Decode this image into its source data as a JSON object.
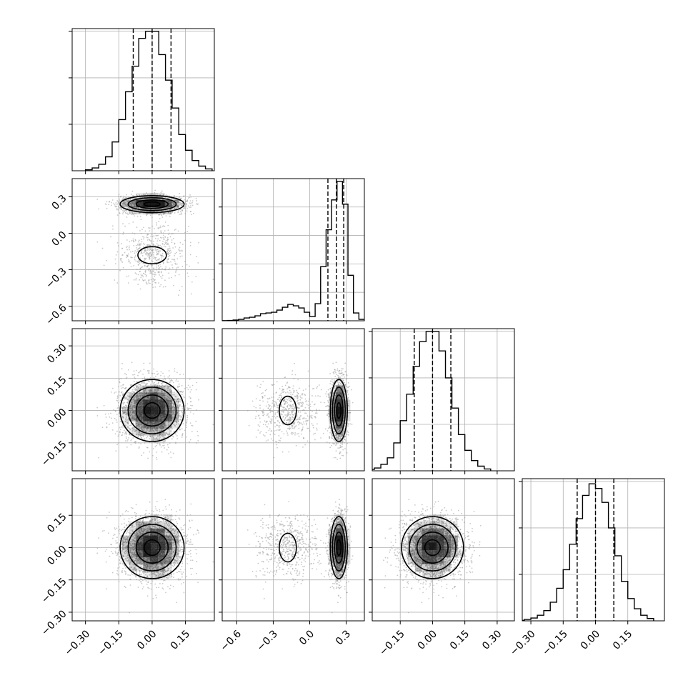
{
  "chart_data": {
    "type": "corner",
    "parameters": 4,
    "grid": true,
    "quantile_lines": "dashed",
    "histograms": [
      {
        "param": 0,
        "bin_edges": [
          -0.3,
          -0.27,
          -0.24,
          -0.21,
          -0.18,
          -0.15,
          -0.12,
          -0.09,
          -0.06,
          -0.03,
          0.0,
          0.03,
          0.06,
          0.09,
          0.12,
          0.15,
          0.18,
          0.21,
          0.24,
          0.27
        ],
        "counts": [
          2,
          6,
          14,
          30,
          62,
          110,
          170,
          225,
          285,
          300,
          300,
          250,
          195,
          135,
          78,
          44,
          22,
          10,
          4
        ],
        "quantiles": [
          -0.085,
          0.0,
          0.085
        ],
        "ylim": [
          0,
          300
        ],
        "ticks": [
          100,
          200,
          300
        ]
      },
      {
        "param": 1,
        "bin_edges": [
          -0.72,
          -0.675,
          -0.63,
          -0.585,
          -0.54,
          -0.495,
          -0.45,
          -0.405,
          -0.36,
          -0.315,
          -0.27,
          -0.225,
          -0.18,
          -0.135,
          -0.09,
          -0.045,
          0.0,
          0.045,
          0.09,
          0.135,
          0.18,
          0.225,
          0.27,
          0.315,
          0.36,
          0.405,
          0.45
        ],
        "counts": [
          1,
          2,
          5,
          10,
          20,
          25,
          35,
          50,
          55,
          60,
          75,
          95,
          115,
          105,
          90,
          60,
          30,
          120,
          380,
          640,
          850,
          980,
          820,
          320,
          55,
          10
        ],
        "quantiles": [
          0.15,
          0.22,
          0.28
        ],
        "ylim": [
          0,
          980
        ],
        "ticks": [
          200,
          400,
          600,
          800
        ]
      },
      {
        "param": 2,
        "bin_edges": [
          -0.3,
          -0.27,
          -0.24,
          -0.21,
          -0.18,
          -0.15,
          -0.12,
          -0.09,
          -0.06,
          -0.03,
          0.0,
          0.03,
          0.06,
          0.09,
          0.12,
          0.15,
          0.18,
          0.21,
          0.24,
          0.27
        ],
        "counts": [
          3,
          6,
          14,
          28,
          60,
          108,
          165,
          225,
          278,
          300,
          300,
          258,
          200,
          135,
          78,
          44,
          22,
          10,
          4
        ],
        "quantiles": [
          -0.085,
          0.0,
          0.085
        ],
        "ylim": [
          0,
          300
        ],
        "ticks": [
          100,
          200,
          300
        ]
      },
      {
        "param": 3,
        "bin_edges": [
          -0.36,
          -0.33,
          -0.3,
          -0.27,
          -0.24,
          -0.21,
          -0.18,
          -0.15,
          -0.12,
          -0.09,
          -0.06,
          -0.03,
          0.0,
          0.03,
          0.06,
          0.09,
          0.12,
          0.15,
          0.18,
          0.21,
          0.24,
          0.27
        ],
        "counts": [
          1,
          3,
          6,
          12,
          22,
          40,
          70,
          110,
          165,
          220,
          270,
          295,
          285,
          255,
          200,
          140,
          85,
          48,
          26,
          12,
          5
        ],
        "quantiles": [
          -0.085,
          0.0,
          0.085
        ],
        "ylim": [
          0,
          300
        ],
        "ticks": [
          100,
          200,
          300
        ]
      }
    ],
    "axes": [
      {
        "param": 0,
        "range": [
          -0.36,
          0.28
        ],
        "tick_values": [
          -0.3,
          -0.15,
          0.0,
          0.15
        ],
        "tick_labels": [
          "−0.30",
          "−0.15",
          "0.00",
          "0.15"
        ]
      },
      {
        "param": 1,
        "range": [
          -0.72,
          0.45
        ],
        "tick_values": [
          -0.6,
          -0.3,
          0.0,
          0.3
        ],
        "tick_labels": [
          "−0.6",
          "−0.3",
          "0.0",
          "0.3"
        ]
      },
      {
        "param": 2,
        "range": [
          -0.28,
          0.38
        ],
        "tick_values": [
          -0.15,
          0.0,
          0.15,
          0.3
        ],
        "tick_labels": [
          "−0.15",
          "0.00",
          "0.15",
          "0.30"
        ]
      },
      {
        "param": 3,
        "range": [
          -0.34,
          0.32
        ],
        "tick_values": [
          -0.3,
          -0.15,
          0.0,
          0.15
        ],
        "tick_labels": [
          "−0.30",
          "−0.15",
          "0.00",
          "0.15"
        ]
      }
    ],
    "row_axes": [
      {
        "param": 1,
        "range": [
          -0.72,
          0.45
        ],
        "tick_values": [
          -0.6,
          -0.3,
          0.0,
          0.3
        ],
        "tick_labels": [
          "−0.6",
          "−0.3",
          "0.0",
          "0.3"
        ]
      },
      {
        "param": 2,
        "range": [
          -0.28,
          0.38
        ],
        "tick_values": [
          -0.15,
          0.0,
          0.15,
          0.3
        ],
        "tick_labels": [
          "−0.15",
          "0.00",
          "0.15",
          "0.30"
        ]
      },
      {
        "param": 3,
        "range": [
          -0.34,
          0.32
        ],
        "tick_values": [
          -0.3,
          -0.15,
          0.0,
          0.15
        ],
        "tick_labels": [
          "−0.30",
          "−0.15",
          "0.00",
          "0.15"
        ]
      }
    ],
    "scatter_panels": [
      {
        "x_param": 0,
        "y_param": 1
      },
      {
        "x_param": 0,
        "y_param": 2
      },
      {
        "x_param": 1,
        "y_param": 2
      },
      {
        "x_param": 0,
        "y_param": 3
      },
      {
        "x_param": 1,
        "y_param": 3
      },
      {
        "x_param": 2,
        "y_param": 3
      }
    ],
    "colors": {
      "line": "#000000",
      "grid": "#b0b0b0",
      "points": "#9a9a9a",
      "density": "#000000"
    }
  }
}
